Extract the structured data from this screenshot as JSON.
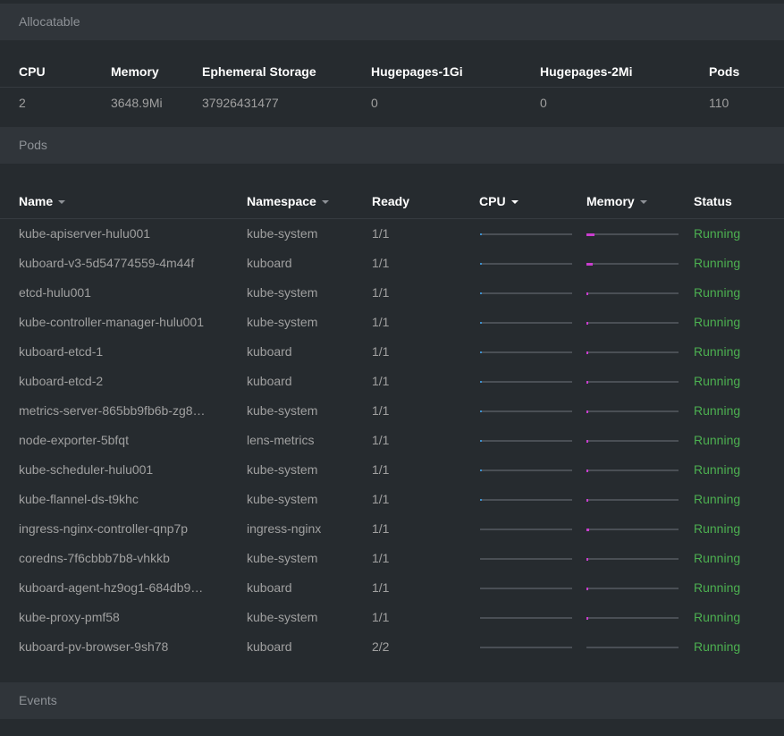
{
  "allocatable": {
    "title": "Allocatable",
    "columns": [
      "CPU",
      "Memory",
      "Ephemeral Storage",
      "Hugepages-1Gi",
      "Hugepages-2Mi",
      "Pods"
    ],
    "values": [
      "2",
      "3648.9Mi",
      "37926431477",
      "0",
      "0",
      "110"
    ]
  },
  "pods": {
    "title": "Pods",
    "columns": {
      "name": "Name",
      "namespace": "Namespace",
      "ready": "Ready",
      "cpu": "CPU",
      "memory": "Memory",
      "status": "Status"
    },
    "rows": [
      {
        "name": "kube-apiserver-hulu001",
        "namespace": "kube-system",
        "ready": "1/1",
        "cpu": 0.02,
        "memory": 0.09,
        "status": "Running"
      },
      {
        "name": "kuboard-v3-5d54774559-4m44f",
        "namespace": "kuboard",
        "ready": "1/1",
        "cpu": 0.02,
        "memory": 0.07,
        "status": "Running"
      },
      {
        "name": "etcd-hulu001",
        "namespace": "kube-system",
        "ready": "1/1",
        "cpu": 0.01,
        "memory": 0.02,
        "status": "Running"
      },
      {
        "name": "kube-controller-manager-hulu001",
        "namespace": "kube-system",
        "ready": "1/1",
        "cpu": 0.01,
        "memory": 0.02,
        "status": "Running"
      },
      {
        "name": "kuboard-etcd-1",
        "namespace": "kuboard",
        "ready": "1/1",
        "cpu": 0.01,
        "memory": 0.01,
        "status": "Running"
      },
      {
        "name": "kuboard-etcd-2",
        "namespace": "kuboard",
        "ready": "1/1",
        "cpu": 0.01,
        "memory": 0.01,
        "status": "Running"
      },
      {
        "name": "metrics-server-865bb9fb6b-zg8…",
        "namespace": "kube-system",
        "ready": "1/1",
        "cpu": 0.01,
        "memory": 0.01,
        "status": "Running"
      },
      {
        "name": "node-exporter-5bfqt",
        "namespace": "lens-metrics",
        "ready": "1/1",
        "cpu": 0.01,
        "memory": 0.01,
        "status": "Running"
      },
      {
        "name": "kube-scheduler-hulu001",
        "namespace": "kube-system",
        "ready": "1/1",
        "cpu": 0.01,
        "memory": 0.01,
        "status": "Running"
      },
      {
        "name": "kube-flannel-ds-t9khc",
        "namespace": "kube-system",
        "ready": "1/1",
        "cpu": 0.01,
        "memory": 0.01,
        "status": "Running"
      },
      {
        "name": "ingress-nginx-controller-qnp7p",
        "namespace": "ingress-nginx",
        "ready": "1/1",
        "cpu": 0.0,
        "memory": 0.03,
        "status": "Running"
      },
      {
        "name": "coredns-7f6cbbb7b8-vhkkb",
        "namespace": "kube-system",
        "ready": "1/1",
        "cpu": 0.0,
        "memory": 0.01,
        "status": "Running"
      },
      {
        "name": "kuboard-agent-hz9og1-684db9…",
        "namespace": "kuboard",
        "ready": "1/1",
        "cpu": 0.0,
        "memory": 0.01,
        "status": "Running"
      },
      {
        "name": "kube-proxy-pmf58",
        "namespace": "kube-system",
        "ready": "1/1",
        "cpu": 0.0,
        "memory": 0.01,
        "status": "Running"
      },
      {
        "name": "kuboard-pv-browser-9sh78",
        "namespace": "kuboard",
        "ready": "2/2",
        "cpu": 0.0,
        "memory": 0.0,
        "status": "Running"
      }
    ]
  },
  "events": {
    "title": "Events"
  },
  "colors": {
    "running": "#4caf50",
    "cpu_bar": "#3d90ce",
    "memory_bar": "#c93dce",
    "track": "#4a4f55"
  }
}
